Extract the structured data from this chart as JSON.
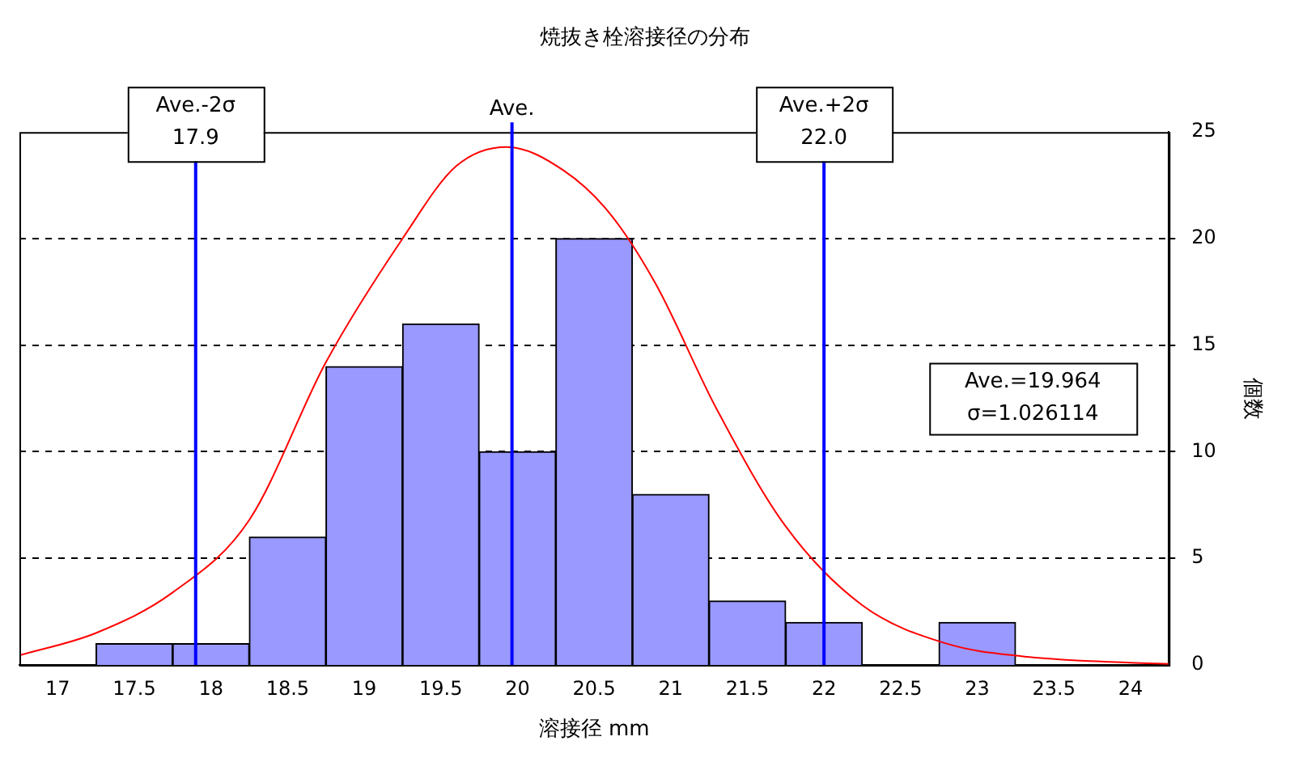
{
  "chart_data": {
    "type": "histogram",
    "title": "焼抜き栓溶接径の分布",
    "xlabel": "溶接径 mm",
    "ylabel": "個数",
    "bins": [
      17.25,
      17.75,
      18.25,
      18.75,
      19.25,
      19.75,
      20.25,
      20.75,
      21.25,
      21.75,
      22.25,
      22.75,
      23.25
    ],
    "values": [
      1,
      1,
      6,
      14,
      16,
      10,
      20,
      8,
      3,
      2,
      0,
      2
    ],
    "color": "#9999ff",
    "series": [
      {
        "type": "line",
        "color": "#ff0000",
        "x": [
          16.75,
          17.25,
          17.75,
          18.25,
          18.75,
          19.25,
          19.6,
          19.93,
          20.3,
          20.6,
          20.9,
          21.3,
          21.75,
          22.25,
          22.8,
          23.3,
          24,
          24.25
        ],
        "values": [
          0.45,
          1.5,
          3.4,
          6.8,
          14.2,
          20,
          23.4,
          24.3,
          23.2,
          21.2,
          17.9,
          12,
          6.5,
          2.8,
          1,
          0.4,
          0.1,
          0.05
        ]
      }
    ],
    "xlim": [
      16.75,
      24.25
    ],
    "xticks": [
      17,
      17.5,
      18,
      18.5,
      19,
      19.5,
      20,
      20.5,
      21,
      21.5,
      22,
      22.5,
      23,
      23.5,
      24
    ],
    "ylim": [
      0,
      25
    ],
    "yticks": [
      0,
      5,
      10,
      15,
      20,
      25
    ],
    "grid": "y",
    "legend": false,
    "ref_lines": [
      {
        "axis": "x",
        "value": 17.9,
        "label": "Ave.-2σ\n17.9",
        "color": "#0000ff"
      },
      {
        "axis": "x",
        "value": 19.964,
        "label": "Ave.",
        "color": "#0000ff"
      },
      {
        "axis": "x",
        "value": 22.0,
        "label": "Ave.+2σ\n22.0",
        "color": "#0000ff"
      }
    ],
    "annotations": [
      "Ave.=19.964\nσ=1.026114"
    ]
  }
}
